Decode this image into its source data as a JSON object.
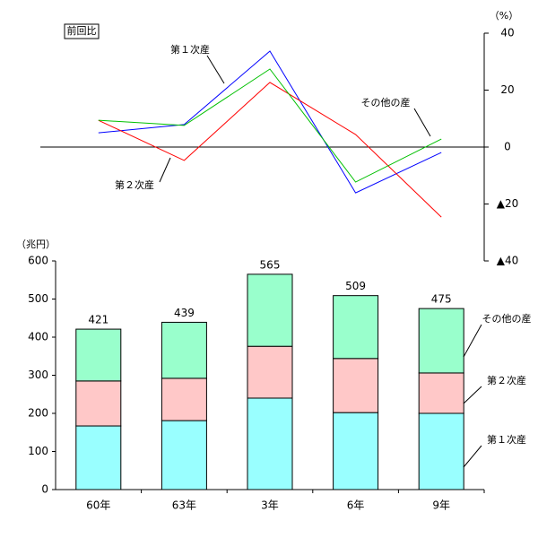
{
  "chart_data": [
    {
      "type": "line",
      "title": "前回比",
      "y_label": "（%）",
      "ylim": [
        -40,
        40
      ],
      "yticks": [
        40,
        20,
        0,
        {
          "value": -20,
          "label": "▲20"
        },
        {
          "value": -40,
          "label": "▲40"
        }
      ],
      "series": [
        {
          "name": "第１次産",
          "color": "#0000ff",
          "values": [
            5.0,
            7.9,
            33.7,
            -16.1,
            -1.9
          ]
        },
        {
          "name": "第２次産",
          "color": "#ff0000",
          "values": [
            9.4,
            -4.7,
            22.7,
            4.4,
            -24.6
          ]
        },
        {
          "name": "その他の産",
          "color": "#00c000",
          "values": [
            9.4,
            7.6,
            27.4,
            -12.3,
            2.8
          ]
        }
      ]
    },
    {
      "type": "bar",
      "stacked": true,
      "y_label": "（兆円）",
      "categories": [
        "60年",
        "63年",
        "3年",
        "6年",
        "9年"
      ],
      "ylim": [
        0,
        600
      ],
      "yticks": [
        0,
        100,
        200,
        300,
        400,
        500,
        600
      ],
      "series": [
        {
          "name": "第１次産",
          "color": "#99ffff",
          "values": [
            167,
            181,
            240,
            202,
            200
          ]
        },
        {
          "name": "第２次産",
          "color": "#ffc8c8",
          "values": [
            118,
            111,
            136,
            142,
            106
          ]
        },
        {
          "name": "その他の産",
          "color": "#99ffcc",
          "values": [
            136,
            147,
            189,
            165,
            169
          ]
        }
      ],
      "totals": [
        421,
        439,
        565,
        509,
        475
      ]
    }
  ]
}
